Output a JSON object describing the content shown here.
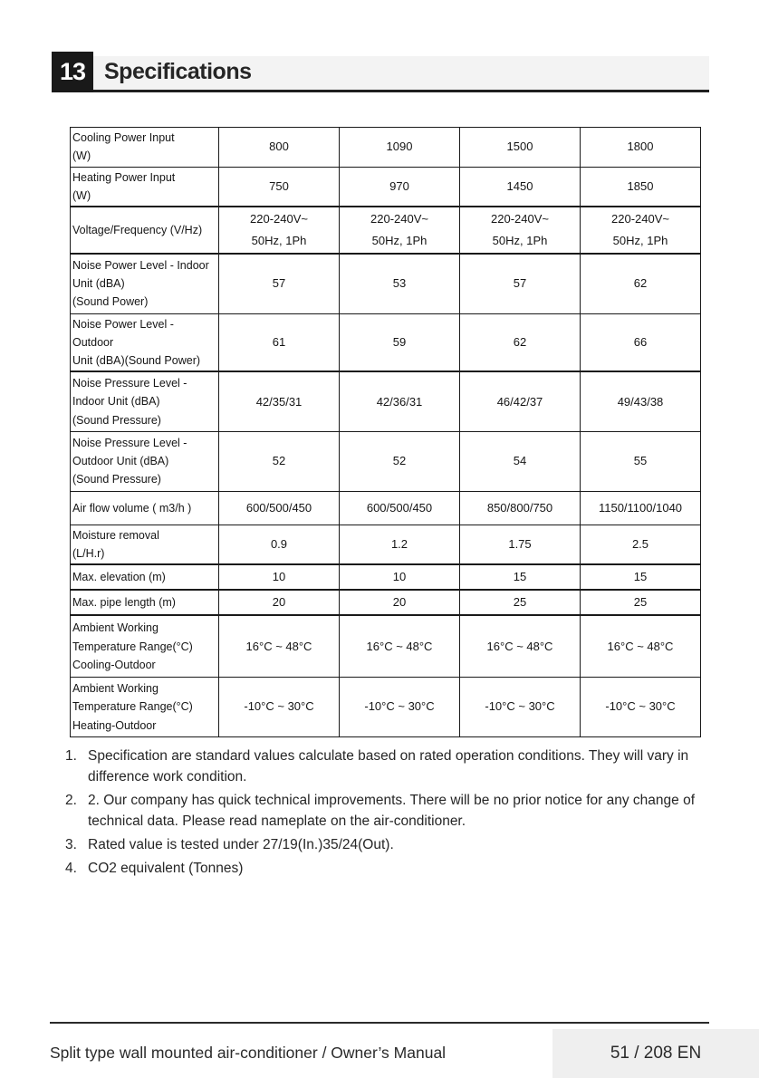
{
  "header": {
    "section_number": "13",
    "section_title": "Specifications"
  },
  "table": {
    "rows": [
      {
        "label": "Cooling Power Input\n (W)",
        "values": [
          "800",
          "1090",
          "1500",
          "1800"
        ]
      },
      {
        "label": "Heating Power Input\n (W)",
        "values": [
          "750",
          "970",
          "1450",
          "1850"
        ]
      },
      {
        "label": "Voltage/Frequency (V/Hz)",
        "values": [
          "220-240V~\n50Hz, 1Ph",
          "220-240V~\n50Hz, 1Ph",
          "220-240V~\n50Hz, 1Ph",
          "220-240V~\n50Hz, 1Ph"
        ]
      },
      {
        "label": "Noise Power Level - Indoor\nUnit (dBA)\n(Sound Power)",
        "values": [
          "57",
          "53",
          "57",
          "62"
        ]
      },
      {
        "label": "Noise Power Level - Outdoor\nUnit (dBA)(Sound Power)",
        "values": [
          "61",
          "59",
          "62",
          "66"
        ]
      },
      {
        "label": "Noise Pressure Level -\nIndoor Unit (dBA)\n(Sound Pressure)",
        "values": [
          "42/35/31",
          "42/36/31",
          "46/42/37",
          "49/43/38"
        ]
      },
      {
        "label": "Noise Pressure Level -\nOutdoor Unit (dBA)\n(Sound Pressure)",
        "values": [
          "52",
          "52",
          "54",
          "55"
        ]
      },
      {
        "label": "Air flow volume ( m3/h )",
        "values": [
          "600/500/450",
          "600/500/450",
          "850/800/750",
          "1150/1100/1040"
        ]
      },
      {
        "label": "Moisture removal\n (L/H.r)",
        "values": [
          "0.9",
          "1.2",
          "1.75",
          "2.5"
        ]
      },
      {
        "label": "Max. elevation (m)",
        "values": [
          "10",
          "10",
          "15",
          "15"
        ]
      },
      {
        "label": "Max. pipe length (m)",
        "values": [
          "20",
          "20",
          "25",
          "25"
        ]
      },
      {
        "label": "Ambient Working\nTemperature Range(°C)\nCooling-Outdoor",
        "values": [
          "16°C ~ 48°C",
          "16°C ~ 48°C",
          "16°C ~ 48°C",
          "16°C ~ 48°C"
        ]
      },
      {
        "label": "Ambient Working\nTemperature Range(°C)\nHeating-Outdoor",
        "values": [
          "-10°C ~ 30°C",
          "-10°C ~ 30°C",
          "-10°C ~ 30°C",
          "-10°C ~ 30°C"
        ]
      }
    ]
  },
  "notes": [
    {
      "num": "1.",
      "text": "Specification are standard values calculate based on rated operation conditions. They will vary in\ndifference work condition."
    },
    {
      "num": "2.",
      "text": "2. Our company has quick technical improvements. There will be no prior notice for any change of\ntechnical data. Please read nameplate on the air-conditioner."
    },
    {
      "num": "3.",
      "text": "Rated value is tested under 27/19(In.)35/24(Out)."
    },
    {
      "num": "4.",
      "text": "CO2 equivalent (Tonnes)"
    }
  ],
  "footer": {
    "manual_title": "Split type wall mounted air-conditioner / Owner’s Manual",
    "page_indicator": "51 / 208 EN"
  },
  "colors": {
    "header_banner": "#f3f3f3",
    "header_box": "#191919",
    "underline": "#1f1f1f",
    "table_border": "#1a1a1a",
    "page_number_box": "#efefef",
    "text": "#262626"
  }
}
